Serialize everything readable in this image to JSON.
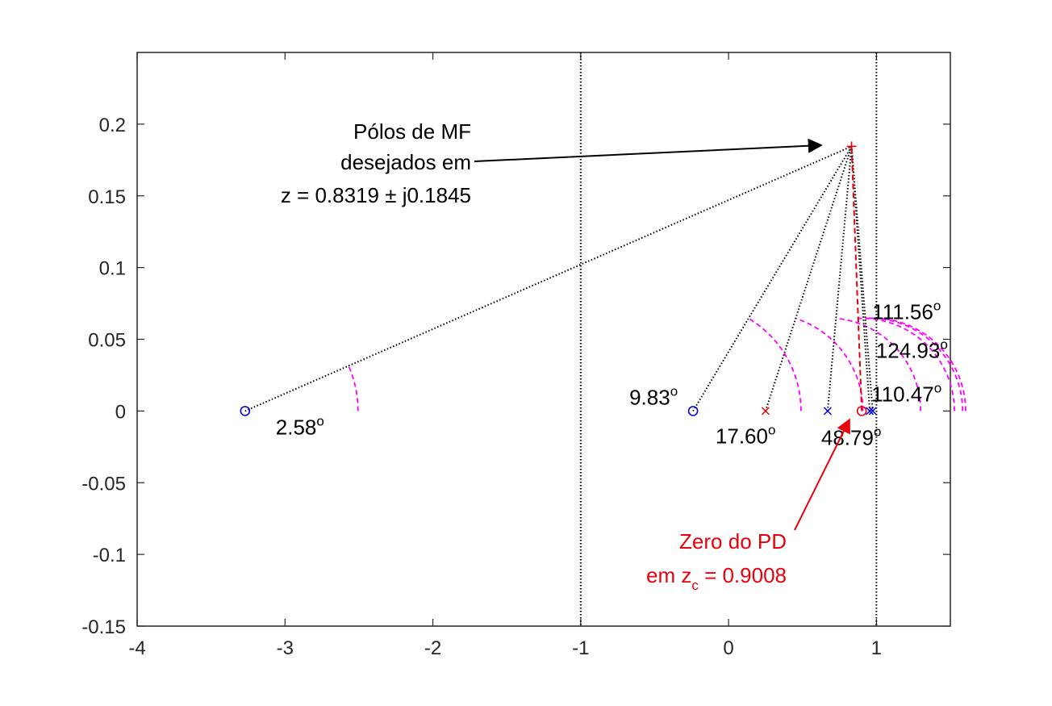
{
  "chart_data": {
    "type": "scatter",
    "title": "",
    "xlabel": "",
    "ylabel": "",
    "xlim": [
      -4,
      1.5
    ],
    "ylim": [
      -0.15,
      0.25
    ],
    "grid": false,
    "x_ticks": [
      -4,
      -3,
      -2,
      -1,
      0,
      1
    ],
    "x_tick_labels": [
      "-4",
      "-3",
      "-2",
      "-1",
      "0",
      "1"
    ],
    "y_ticks": [
      -0.15,
      -0.1,
      -0.05,
      0,
      0.05,
      0.1,
      0.15,
      0.2
    ],
    "y_tick_labels": [
      "-0.15",
      "-0.1",
      "-0.05",
      "0",
      "0.05",
      "0.1",
      "0.15",
      "0.2"
    ],
    "vertical_lines": [
      -1,
      1
    ],
    "desired_pole": {
      "x": 0.8319,
      "y": 0.1845,
      "marker": "+",
      "color": "#e8000b"
    },
    "plant_zeros": [
      {
        "x": -3.27,
        "y": 0,
        "marker": "o",
        "color": "#0000ee",
        "angle_label": "2.58",
        "angle_deg": 2.58
      },
      {
        "x": -0.24,
        "y": 0,
        "marker": "o",
        "color": "#0000ee",
        "angle_label": "9.83",
        "angle_deg": 9.83
      }
    ],
    "plant_poles": [
      {
        "x": 0.25,
        "y": 0,
        "marker": "x",
        "color": "#e8000b",
        "angle_label": "17.60",
        "angle_deg": 17.6
      },
      {
        "x": 0.67,
        "y": 0,
        "marker": "x",
        "color": "#0000ee",
        "angle_label": "48.79",
        "angle_deg": 48.79
      },
      {
        "x": 0.955,
        "y": 0,
        "marker": "x",
        "color": "#0000ee",
        "angle_label": "110.47",
        "angle_deg": 110.47
      },
      {
        "x": 0.975,
        "y": 0,
        "marker": "x",
        "color": "#0000ee",
        "angle_label": "124.93",
        "angle_deg": 124.93
      }
    ],
    "controller_zero": {
      "x": 0.9008,
      "y": 0,
      "marker": "o",
      "color": "#e8000b",
      "angle_label": "111.56",
      "angle_deg": 111.56
    },
    "degree_symbol": "o",
    "annotations": {
      "poles": {
        "line1": "Pólos de MF",
        "line2": "desejados em",
        "line3": "z = 0.8319 ± j0.1845"
      },
      "zero": {
        "line1": "Zero do PD",
        "line2_prefix": "em z",
        "line2_sub": "c",
        "line2_suffix": " = 0.9008"
      }
    },
    "colors": {
      "axis": "#262626",
      "blue": "#0000ee",
      "red": "#e8000b",
      "magenta": "#ff00ff",
      "black": "#000000"
    }
  }
}
